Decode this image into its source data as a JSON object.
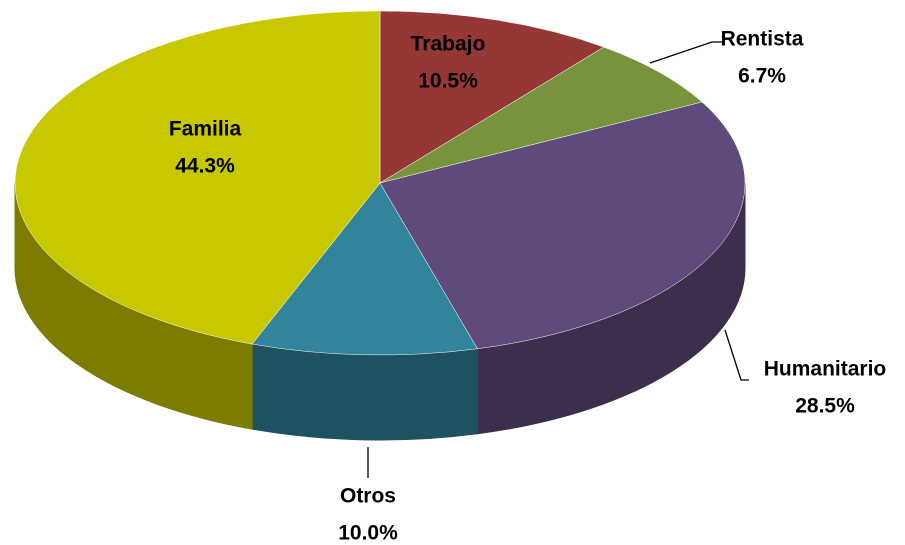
{
  "chart_data": {
    "type": "pie",
    "categories": [
      "Trabajo",
      "Rentista",
      "Humanitario",
      "Otros",
      "Familia"
    ],
    "values": [
      10.5,
      6.7,
      28.5,
      10.0,
      44.3
    ],
    "value_labels": [
      "10.5%",
      "6.7%",
      "28.5%",
      "10.0%",
      "44.3%"
    ],
    "colors": [
      "#953735",
      "#77933c",
      "#604a7b",
      "#31849b",
      "#c8c800"
    ]
  }
}
